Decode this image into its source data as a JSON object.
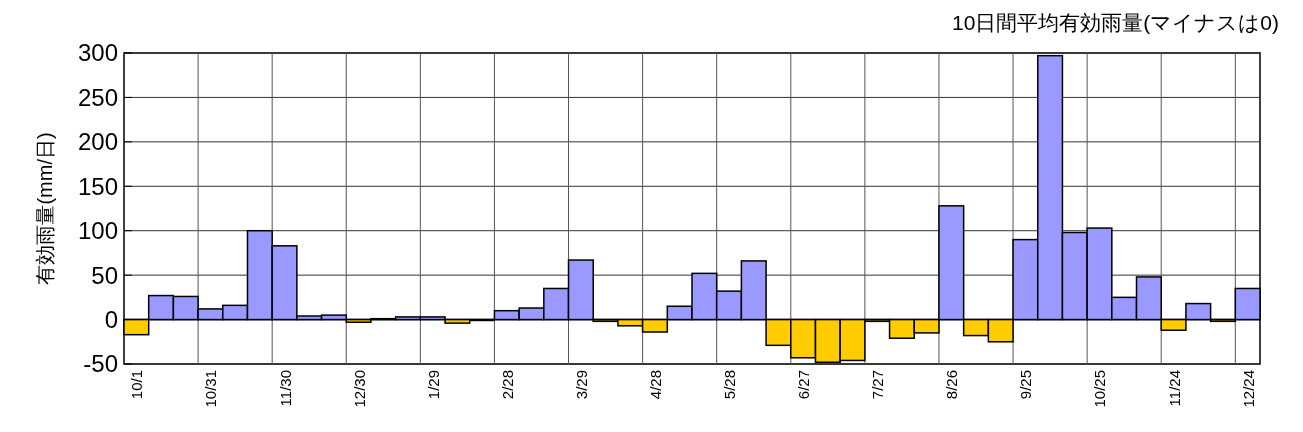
{
  "chart_data": {
    "type": "bar",
    "title": "10日間平均有効雨量(マイナスは0)",
    "ylabel": "有効雨量(mm/日)",
    "categories": [
      "10/1",
      null,
      null,
      "10/31",
      null,
      null,
      "11/30",
      null,
      null,
      "12/30",
      null,
      null,
      "1/29",
      null,
      null,
      "2/28",
      null,
      null,
      "3/29",
      null,
      null,
      "4/28",
      null,
      null,
      "5/28",
      null,
      null,
      "6/27",
      null,
      null,
      "7/27",
      null,
      null,
      "8/26",
      null,
      null,
      "9/25",
      null,
      null,
      "10/25",
      null,
      null,
      "11/24",
      null,
      null,
      "12/24"
    ],
    "values": [
      -17,
      27,
      26,
      12,
      16,
      100,
      83,
      4,
      5,
      -3,
      1,
      3,
      3,
      -4,
      -1,
      10,
      13,
      35,
      67,
      -2,
      -7,
      -14,
      15,
      52,
      32,
      66,
      -29,
      -43,
      -48,
      -46,
      -2,
      -21,
      -15,
      128,
      -18,
      -25,
      90,
      297,
      98,
      103,
      25,
      48,
      -12,
      18,
      -2,
      35
    ],
    "colors": [
      "#ffcc00",
      "#9999ff",
      "#9999ff",
      "#9999ff",
      "#9999ff",
      "#9999ff",
      "#9999ff",
      "#9999ff",
      "#9999ff",
      "#ffcc00",
      "#9999ff",
      "#9999ff",
      "#9999ff",
      "#ffcc00",
      "#ffcc00",
      "#9999ff",
      "#9999ff",
      "#9999ff",
      "#9999ff",
      "#ffcc00",
      "#ffcc00",
      "#ffcc00",
      "#9999ff",
      "#9999ff",
      "#9999ff",
      "#9999ff",
      "#ffcc00",
      "#ffcc00",
      "#ffcc00",
      "#ffcc00",
      "#ffcc00",
      "#ffcc00",
      "#ffcc00",
      "#9999ff",
      "#ffcc00",
      "#ffcc00",
      "#9999ff",
      "#9999ff",
      "#9999ff",
      "#9999ff",
      "#9999ff",
      "#9999ff",
      "#ffcc00",
      "#9999ff",
      "#ffcc00",
      "#9999ff"
    ],
    "ylim": [
      -50,
      300
    ],
    "yticks": [
      -50,
      0,
      50,
      100,
      150,
      200,
      250,
      300
    ],
    "grid": true
  }
}
